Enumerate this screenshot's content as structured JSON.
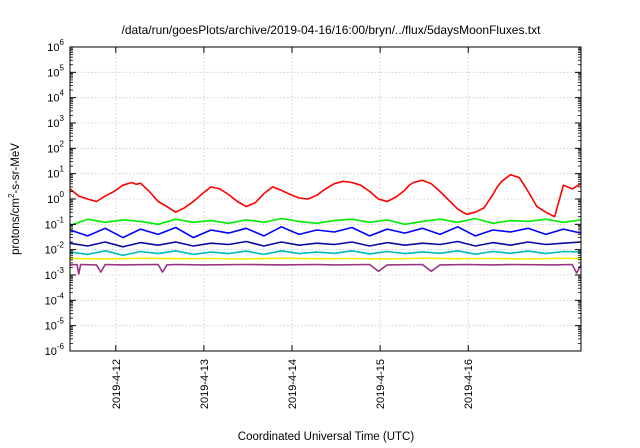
{
  "chart_data": {
    "type": "line",
    "title": "/data/run/goesPlots/archive/2019-04-16/16:00/bryn/../flux/5daysMoonFluxes.txt",
    "xlabel": "Coordinated Universal Time (UTC)",
    "ylabel": {
      "pre": "protons/cm",
      "sup": "2",
      "post": "-s-sr-MeV"
    },
    "ylim_exp": [
      -6,
      6
    ],
    "y_scale": "log",
    "xlim": [
      0,
      5.8
    ],
    "x_ticks": [
      {
        "x": 0.52,
        "label": "2019-4-12"
      },
      {
        "x": 1.52,
        "label": "2019-4-13"
      },
      {
        "x": 2.52,
        "label": "2019-4-14"
      },
      {
        "x": 3.52,
        "label": "2019-4-15"
      },
      {
        "x": 4.52,
        "label": "2019-4-16"
      }
    ],
    "y_ticks": [
      {
        "base": "10",
        "exp": "-6"
      },
      {
        "base": "10",
        "exp": "-5"
      },
      {
        "base": "10",
        "exp": "-4"
      },
      {
        "base": "10",
        "exp": "-3"
      },
      {
        "base": "10",
        "exp": "-2"
      },
      {
        "base": "10",
        "exp": "-1"
      },
      {
        "base": "10",
        "exp": "0"
      },
      {
        "base": "10",
        "exp": "1"
      },
      {
        "base": "10",
        "exp": "2"
      },
      {
        "base": "10",
        "exp": "3"
      },
      {
        "base": "10",
        "exp": "4"
      },
      {
        "base": "10",
        "exp": "5"
      },
      {
        "base": "10",
        "exp": "6"
      }
    ],
    "grid": true,
    "series": [
      {
        "color": "#ff0000",
        "x": [
          0.0,
          0.1,
          0.2,
          0.3,
          0.4,
          0.5,
          0.6,
          0.7,
          0.75,
          0.8,
          0.9,
          1.0,
          1.1,
          1.2,
          1.3,
          1.4,
          1.5,
          1.6,
          1.7,
          1.8,
          1.9,
          2.0,
          2.1,
          2.2,
          2.3,
          2.4,
          2.5,
          2.6,
          2.7,
          2.8,
          2.9,
          3.0,
          3.1,
          3.2,
          3.3,
          3.4,
          3.5,
          3.6,
          3.7,
          3.8,
          3.85,
          3.9,
          4.0,
          4.1,
          4.2,
          4.3,
          4.4,
          4.5,
          4.6,
          4.7,
          4.8,
          4.85,
          4.9,
          5.0,
          5.1,
          5.2,
          5.3,
          5.4,
          5.5,
          5.6,
          5.7,
          5.8
        ],
        "y": [
          2.5,
          1.3,
          1.0,
          0.8,
          1.3,
          2.0,
          3.5,
          4.5,
          3.8,
          4.2,
          2.0,
          0.8,
          0.5,
          0.3,
          0.45,
          0.8,
          1.6,
          3.0,
          2.5,
          1.5,
          0.8,
          0.5,
          0.7,
          1.6,
          3.0,
          2.2,
          1.5,
          1.1,
          1.0,
          1.4,
          2.5,
          4.0,
          5.0,
          4.5,
          3.5,
          2.0,
          1.0,
          0.8,
          1.2,
          2.2,
          3.5,
          4.5,
          5.5,
          4.0,
          2.0,
          0.9,
          0.4,
          0.25,
          0.3,
          0.45,
          1.5,
          3.0,
          5.0,
          9.0,
          7.0,
          2.0,
          0.5,
          0.3,
          0.2,
          3.5,
          2.5,
          4.0
        ]
      },
      {
        "color": "#00ee00",
        "x": [
          0.0,
          0.2,
          0.4,
          0.6,
          0.8,
          1.0,
          1.2,
          1.4,
          1.6,
          1.8,
          2.0,
          2.2,
          2.4,
          2.6,
          2.8,
          3.0,
          3.2,
          3.4,
          3.6,
          3.8,
          4.0,
          4.2,
          4.4,
          4.6,
          4.8,
          5.0,
          5.2,
          5.4,
          5.6,
          5.8
        ],
        "y": [
          0.09,
          0.16,
          0.12,
          0.15,
          0.13,
          0.1,
          0.16,
          0.12,
          0.14,
          0.11,
          0.15,
          0.12,
          0.17,
          0.13,
          0.11,
          0.14,
          0.16,
          0.12,
          0.15,
          0.1,
          0.13,
          0.16,
          0.12,
          0.17,
          0.11,
          0.14,
          0.13,
          0.16,
          0.12,
          0.15
        ]
      },
      {
        "color": "#0000ff",
        "x": [
          0.0,
          0.2,
          0.4,
          0.6,
          0.8,
          1.0,
          1.2,
          1.4,
          1.6,
          1.8,
          2.0,
          2.2,
          2.4,
          2.6,
          2.8,
          3.0,
          3.2,
          3.4,
          3.6,
          3.8,
          4.0,
          4.2,
          4.4,
          4.6,
          4.8,
          5.0,
          5.2,
          5.4,
          5.6,
          5.8
        ],
        "y": [
          0.06,
          0.035,
          0.07,
          0.03,
          0.065,
          0.04,
          0.075,
          0.03,
          0.06,
          0.045,
          0.07,
          0.035,
          0.08,
          0.04,
          0.06,
          0.05,
          0.075,
          0.035,
          0.065,
          0.045,
          0.07,
          0.04,
          0.08,
          0.035,
          0.06,
          0.05,
          0.07,
          0.04,
          0.065,
          0.045
        ]
      },
      {
        "color": "#0a0aa0",
        "x": [
          0.0,
          0.2,
          0.4,
          0.6,
          0.8,
          1.0,
          1.2,
          1.4,
          1.6,
          1.8,
          2.0,
          2.2,
          2.4,
          2.6,
          2.8,
          3.0,
          3.2,
          3.4,
          3.6,
          3.8,
          4.0,
          4.2,
          4.4,
          4.6,
          4.8,
          5.0,
          5.2,
          5.4,
          5.6,
          5.8
        ],
        "y": [
          0.018,
          0.014,
          0.02,
          0.013,
          0.019,
          0.015,
          0.02,
          0.014,
          0.018,
          0.016,
          0.021,
          0.014,
          0.02,
          0.015,
          0.018,
          0.016,
          0.02,
          0.014,
          0.019,
          0.015,
          0.018,
          0.016,
          0.021,
          0.014,
          0.019,
          0.015,
          0.02,
          0.016,
          0.018,
          0.02
        ]
      },
      {
        "color": "#00bbbb",
        "x": [
          0.0,
          0.2,
          0.4,
          0.6,
          0.8,
          1.0,
          1.2,
          1.4,
          1.6,
          1.8,
          2.0,
          2.2,
          2.4,
          2.6,
          2.8,
          3.0,
          3.2,
          3.4,
          3.6,
          3.8,
          4.0,
          4.2,
          4.4,
          4.6,
          4.8,
          5.0,
          5.2,
          5.4,
          5.6,
          5.8
        ],
        "y": [
          0.008,
          0.0065,
          0.009,
          0.006,
          0.0085,
          0.007,
          0.009,
          0.0065,
          0.008,
          0.007,
          0.0088,
          0.0065,
          0.009,
          0.007,
          0.008,
          0.0072,
          0.009,
          0.0068,
          0.0085,
          0.007,
          0.0082,
          0.0072,
          0.009,
          0.0066,
          0.0085,
          0.0072,
          0.0088,
          0.007,
          0.0085,
          0.008
        ]
      },
      {
        "color": "#eeee00",
        "x": [
          0.0,
          0.4,
          0.8,
          1.2,
          1.6,
          2.0,
          2.4,
          2.8,
          3.2,
          3.6,
          4.0,
          4.4,
          4.8,
          5.2,
          5.6,
          5.8
        ],
        "y": [
          0.0045,
          0.0043,
          0.0046,
          0.0044,
          0.0045,
          0.0043,
          0.0046,
          0.0044,
          0.0045,
          0.0043,
          0.0046,
          0.0044,
          0.0045,
          0.0043,
          0.0046,
          0.0044
        ]
      },
      {
        "color": "#993388",
        "x": [
          0.0,
          0.08,
          0.1,
          0.12,
          0.3,
          0.35,
          0.4,
          0.6,
          1.0,
          1.05,
          1.1,
          1.2,
          1.5,
          2.0,
          2.4,
          2.8,
          3.0,
          3.4,
          3.5,
          3.6,
          4.0,
          4.1,
          4.2,
          4.5,
          4.8,
          5.0,
          5.5,
          5.7,
          5.75,
          5.8
        ],
        "y": [
          0.0025,
          0.0026,
          0.0011,
          0.0026,
          0.0025,
          0.0013,
          0.0026,
          0.0025,
          0.0026,
          0.0013,
          0.0025,
          0.0026,
          0.0025,
          0.0026,
          0.0025,
          0.0026,
          0.0025,
          0.0026,
          0.0014,
          0.0025,
          0.0026,
          0.0014,
          0.0025,
          0.0026,
          0.0025,
          0.0026,
          0.0025,
          0.0026,
          0.0012,
          0.0025
        ]
      }
    ]
  }
}
